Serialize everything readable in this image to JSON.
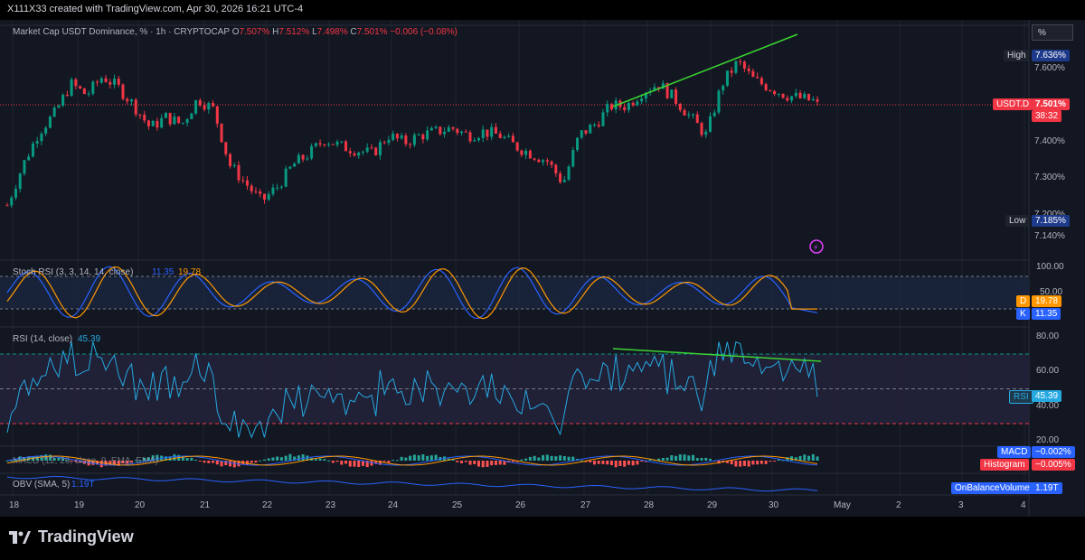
{
  "window": {
    "caption": "X111X33 created with TradingView.com, Apr 30, 2026 16:21 UTC-4"
  },
  "header": {
    "symbol": "Market Cap USDT Dominance, % · 1h · CRYPTOCAP",
    "o_label": "O",
    "o_value": "7.507%",
    "h_label": "H",
    "h_value": "7.512%",
    "l_label": "L",
    "l_value": "7.498%",
    "c_label": "C",
    "c_value": "7.501%",
    "change": "−0.006 (−0.08%)"
  },
  "scale_button": "%",
  "price_axis": {
    "ticks": [
      "7.600%",
      "7.400%",
      "7.300%",
      "7.200%",
      "7.140%"
    ],
    "high_label": "High",
    "high_value": "7.636%",
    "low_label": "Low",
    "low_value": "7.185%",
    "symbol_tag": "USDT.D",
    "current_value": "7.501%",
    "countdown": "38:32"
  },
  "stoch_rsi": {
    "title": "Stoch RSI (3, 3, 14, 14, close)",
    "k_value": "11.35",
    "d_value": "19.78",
    "ticks": [
      "100.00",
      "50.00"
    ],
    "d_label": "D",
    "k_label": "K"
  },
  "rsi": {
    "title": "RSI (14, close)",
    "value": "45.39",
    "ticks": [
      "80.00",
      "60.00",
      "40.00",
      "20.00"
    ],
    "tag_label": "RSI"
  },
  "macd": {
    "title": "MACD (12, 26, close, 9, EMA, EMA)",
    "macd_label": "MACD",
    "macd_value": "−0.002%",
    "hist_label": "Histogram",
    "hist_value": "−0.005%"
  },
  "obv": {
    "title": "OBV (SMA, 5)",
    "value": "1.19T",
    "tag_label": "OnBalanceVolume"
  },
  "time_axis": [
    "18",
    "19",
    "20",
    "21",
    "22",
    "23",
    "24",
    "25",
    "26",
    "27",
    "28",
    "29",
    "30",
    "May",
    "2",
    "3",
    "4"
  ],
  "brand": "TradingView",
  "colors": {
    "up": "#089981",
    "down": "#f23645",
    "trendline": "#3bd431",
    "rsi_line": "#26a9e0",
    "stoch_k": "#2962ff",
    "stoch_d": "#ff9800"
  },
  "chart_data": {
    "type": "candlestick",
    "title": "Market Cap USDT Dominance, % · 1h · CRYPTOCAP",
    "x_labels": [
      "18",
      "19",
      "20",
      "21",
      "22",
      "23",
      "24",
      "25",
      "26",
      "27",
      "28",
      "29",
      "30",
      "May",
      "2",
      "3",
      "4"
    ],
    "price_path": [
      7.22,
      7.33,
      7.42,
      7.47,
      7.55,
      7.52,
      7.57,
      7.54,
      7.49,
      7.43,
      7.46,
      7.44,
      7.51,
      7.48,
      7.33,
      7.28,
      7.23,
      7.27,
      7.33,
      7.36,
      7.4,
      7.38,
      7.37,
      7.36,
      7.41,
      7.39,
      7.41,
      7.42,
      7.43,
      7.41,
      7.42,
      7.41,
      7.38,
      7.36,
      7.34,
      7.28,
      7.41,
      7.44,
      7.49,
      7.49,
      7.53,
      7.55,
      7.51,
      7.46,
      7.41,
      7.55,
      7.61,
      7.56,
      7.54,
      7.52,
      7.51,
      7.501
    ],
    "ohlc_last": {
      "open": 7.507,
      "high": 7.512,
      "low": 7.498,
      "close": 7.501
    },
    "high": 7.636,
    "low": 7.185,
    "current": 7.501,
    "ylim": [
      7.12,
      7.66
    ],
    "stoch_rsi": {
      "k": 11.35,
      "d": 19.78
    },
    "rsi": 45.39,
    "macd": -0.002,
    "histogram": -0.005,
    "obv": "1.19T"
  }
}
